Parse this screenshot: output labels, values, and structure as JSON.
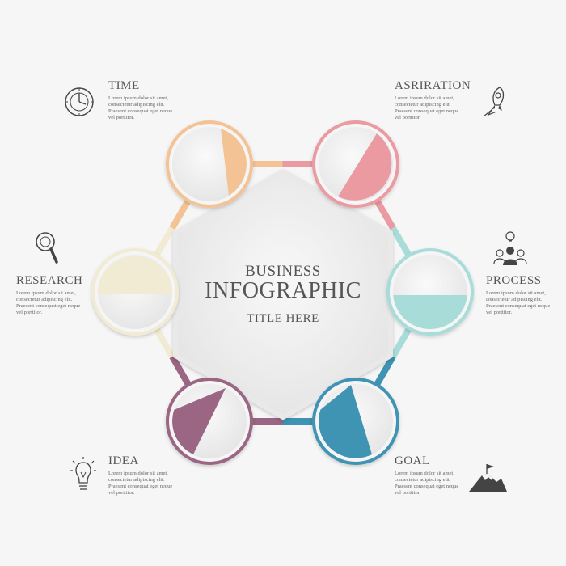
{
  "center": {
    "title_line1": "BUSINESS",
    "title_line2": "INFOGRAPHIC",
    "subtitle": "TITLE HERE"
  },
  "steps": [
    {
      "label": "TIME",
      "desc": [
        "Lorem ipsum dolor sit amet,",
        "consectetur adipiscing elit.",
        "Praesent consequat eget neque",
        "vel porttitor."
      ],
      "color": "#f3c396",
      "icon": "clock-icon"
    },
    {
      "label": "ASRIRATION",
      "desc": [
        "Lorem ipsum dolor sit amet,",
        "consectetur adipiscing elit.",
        "Praesent consequat eget neque",
        "vel porttitor."
      ],
      "color": "#ea9aa0",
      "icon": "rocket-icon"
    },
    {
      "label": "PROCESS",
      "desc": [
        "Lorem ipsum dolor sit amet,",
        "consectetur adipiscing elit.",
        "Praesent consequat eget neque",
        "vel porttitor."
      ],
      "color": "#a8dcd9",
      "icon": "team-idea-icon"
    },
    {
      "label": "GOAL",
      "desc": [
        "Lorem ipsum dolor sit amet,",
        "consectetur adipiscing elit.",
        "Praesent consequat eget neque",
        "vel porttitor."
      ],
      "color": "#3f93b3",
      "icon": "mountain-flag-icon"
    },
    {
      "label": "IDEA",
      "desc": [
        "Lorem ipsum dolor sit amet,",
        "consectetur adipiscing elit.",
        "Praesent consequat eget neque",
        "vel porttitor."
      ],
      "color": "#9b6683",
      "icon": "lightbulb-icon"
    },
    {
      "label": "RESEARCH",
      "desc": [
        "Lorem ipsum dolor sit amet,",
        "consectetur adipiscing elit.",
        "Praesent consequat eget neque",
        "vel porttitor."
      ],
      "color": "#f2ebd3",
      "icon": "magnifier-icon"
    }
  ]
}
